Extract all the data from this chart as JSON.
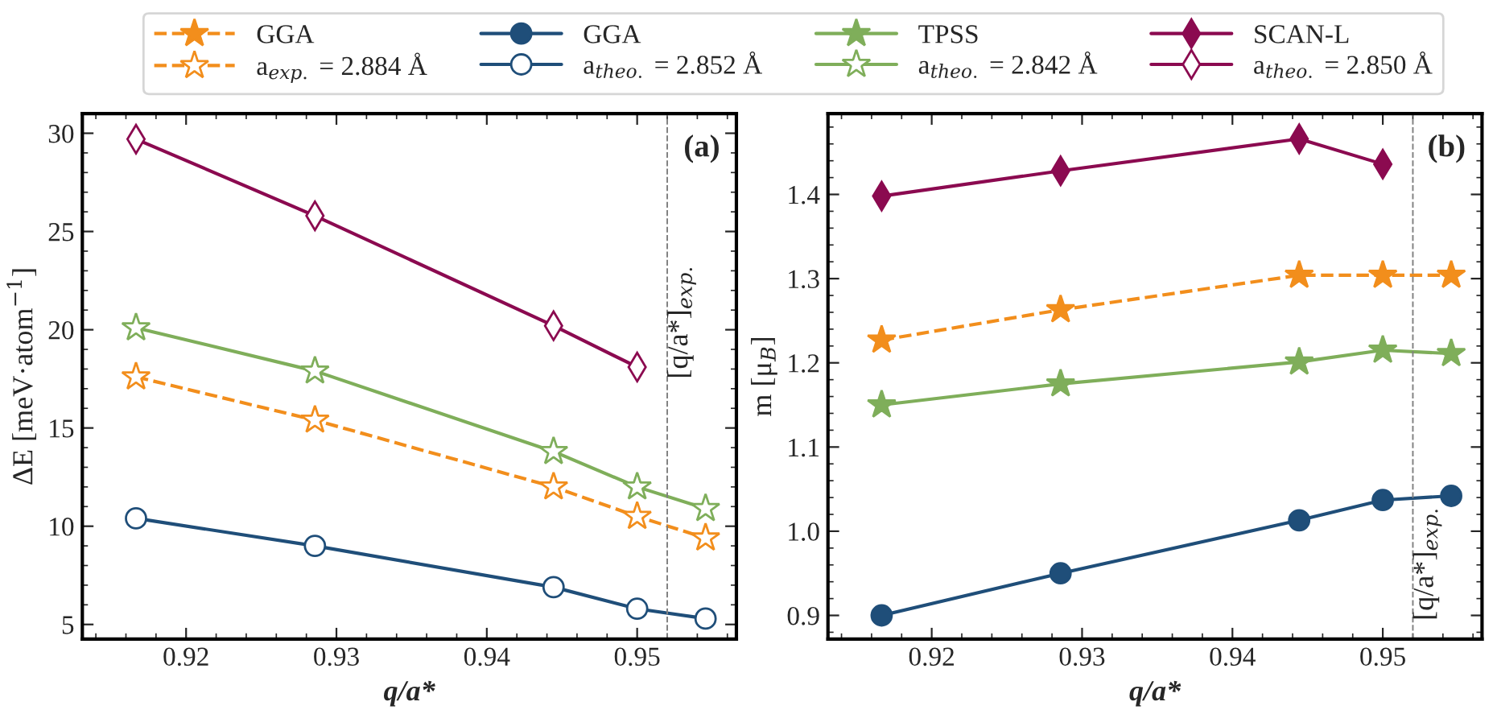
{
  "chart_data": [
    {
      "type": "line",
      "xlabel": "q/a*",
      "ylabel": "ΔE [meV·atom$^{−1}$]",
      "x": [
        0.91667,
        0.92857,
        0.94444,
        0.95,
        0.95455
      ],
      "xlim": [
        0.9131,
        0.9566
      ],
      "xticks": [
        0.92,
        0.93,
        0.94,
        0.95
      ],
      "ylim": [
        4.26,
        31.0
      ],
      "yticks": [
        5,
        10,
        15,
        20,
        25,
        30
      ],
      "legend": "top",
      "grid": false,
      "annotations": [
        "(a)"
      ],
      "ref_lines": [
        {
          "axis": "x",
          "value": 0.952,
          "label": "[q/a*]$_{exp.}$",
          "color": "#808080",
          "line_style": "dashed"
        }
      ],
      "series": [
        {
          "name": "a$_{exp.}$ = 2.884 Å",
          "color": "#f28e1c",
          "marker": "star",
          "line_style": "dashed",
          "values": [
            17.6,
            15.4,
            12.0,
            10.5,
            9.4
          ]
        },
        {
          "name": "a$_{theo.}$ = 2.852 Å",
          "color": "#1f4e79",
          "marker": "circle",
          "line_style": "solid",
          "values": [
            10.4,
            9.0,
            6.9,
            5.8,
            5.3
          ]
        },
        {
          "name": "a$_{theo.}$ = 2.842 Å",
          "color": "#7fae5a",
          "marker": "star",
          "line_style": "solid",
          "values": [
            20.1,
            17.9,
            13.8,
            12.0,
            10.9
          ]
        },
        {
          "name": "a$_{theo.}$ = 2.850 Å",
          "color": "#8b0a50",
          "marker": "diamond",
          "line_style": "solid",
          "values": [
            29.7,
            25.8,
            20.2,
            18.1,
            null
          ]
        }
      ]
    },
    {
      "type": "line",
      "xlabel": "q/a*",
      "ylabel": "m [μ$_{B}$]",
      "x": [
        0.91667,
        0.92857,
        0.94444,
        0.95,
        0.95455
      ],
      "xlim": [
        0.9131,
        0.9566
      ],
      "xticks": [
        0.92,
        0.93,
        0.94,
        0.95
      ],
      "ylim": [
        0.872,
        1.496
      ],
      "yticks": [
        {
          "value": 0.9,
          "label": "0.9"
        },
        {
          "value": 1.0,
          "label": "1.0"
        },
        {
          "value": 1.1,
          "label": "1.1"
        },
        {
          "value": 1.2,
          "label": "1.2"
        },
        {
          "value": 1.3,
          "label": "1.3"
        },
        {
          "value": 1.4,
          "label": "1.4"
        }
      ],
      "legend": "top",
      "grid": false,
      "annotations": [
        "(b)"
      ],
      "ref_lines": [
        {
          "axis": "x",
          "value": 0.952,
          "label": "[q/a*]$_{exp.}$",
          "color": "#808080",
          "line_style": "dashed"
        }
      ],
      "series": [
        {
          "name": "GGA",
          "color": "#f28e1c",
          "marker": "star",
          "line_style": "dashed",
          "values": [
            1.227,
            1.263,
            1.304,
            1.304,
            1.304
          ]
        },
        {
          "name": "GGA",
          "color": "#1f4e79",
          "marker": "circle",
          "line_style": "solid",
          "values": [
            0.9,
            0.95,
            1.013,
            1.037,
            1.042
          ]
        },
        {
          "name": "TPSS",
          "color": "#7fae5a",
          "marker": "star",
          "line_style": "solid",
          "values": [
            1.15,
            1.175,
            1.201,
            1.215,
            1.211
          ]
        },
        {
          "name": "SCAN-L",
          "color": "#8b0a50",
          "marker": "diamond",
          "line_style": "solid",
          "values": [
            1.398,
            1.428,
            1.466,
            1.436,
            null
          ]
        }
      ]
    }
  ]
}
